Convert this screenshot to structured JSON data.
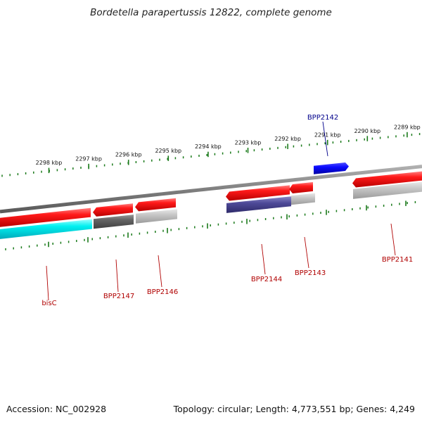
{
  "title": "Bordetella parapertussis 12822, complete genome",
  "footer": {
    "accession": "Accession: NC_002928",
    "topology": "Topology: circular; Length: 4,773,551 bp; Genes: 4,249"
  },
  "colors": {
    "backbone": "#808080",
    "tick": "#1a7a1a",
    "forward_gene": "#0000e0",
    "reverse_gene": "#e00000",
    "label_forward": "#00008b",
    "label_reverse": "#b00000"
  },
  "scale_ticks": [
    {
      "label": "2298 kbp",
      "kbp": 2298
    },
    {
      "label": "2297 kbp",
      "kbp": 2297
    },
    {
      "label": "2296 kbp",
      "kbp": 2296
    },
    {
      "label": "2295 kbp",
      "kbp": 2295
    },
    {
      "label": "2294 kbp",
      "kbp": 2294
    },
    {
      "label": "2293 kbp",
      "kbp": 2293
    },
    {
      "label": "2292 kbp",
      "kbp": 2292
    },
    {
      "label": "2291 kbp",
      "kbp": 2291
    },
    {
      "label": "2290 kbp",
      "kbp": 2290
    },
    {
      "label": "2289 kbp",
      "kbp": 2289
    }
  ],
  "genes": [
    {
      "name": "bisC",
      "strand": "reverse",
      "labeled": true
    },
    {
      "name": "BPP2147",
      "strand": "reverse",
      "labeled": true
    },
    {
      "name": "BPP2146",
      "strand": "reverse",
      "labeled": true
    },
    {
      "name": "BPP2144",
      "strand": "reverse",
      "labeled": true
    },
    {
      "name": "BPP2143",
      "strand": "reverse",
      "labeled": true
    },
    {
      "name": "BPP2142",
      "strand": "forward",
      "labeled": true
    },
    {
      "name": "BPP2141",
      "strand": "reverse",
      "labeled": true
    }
  ]
}
